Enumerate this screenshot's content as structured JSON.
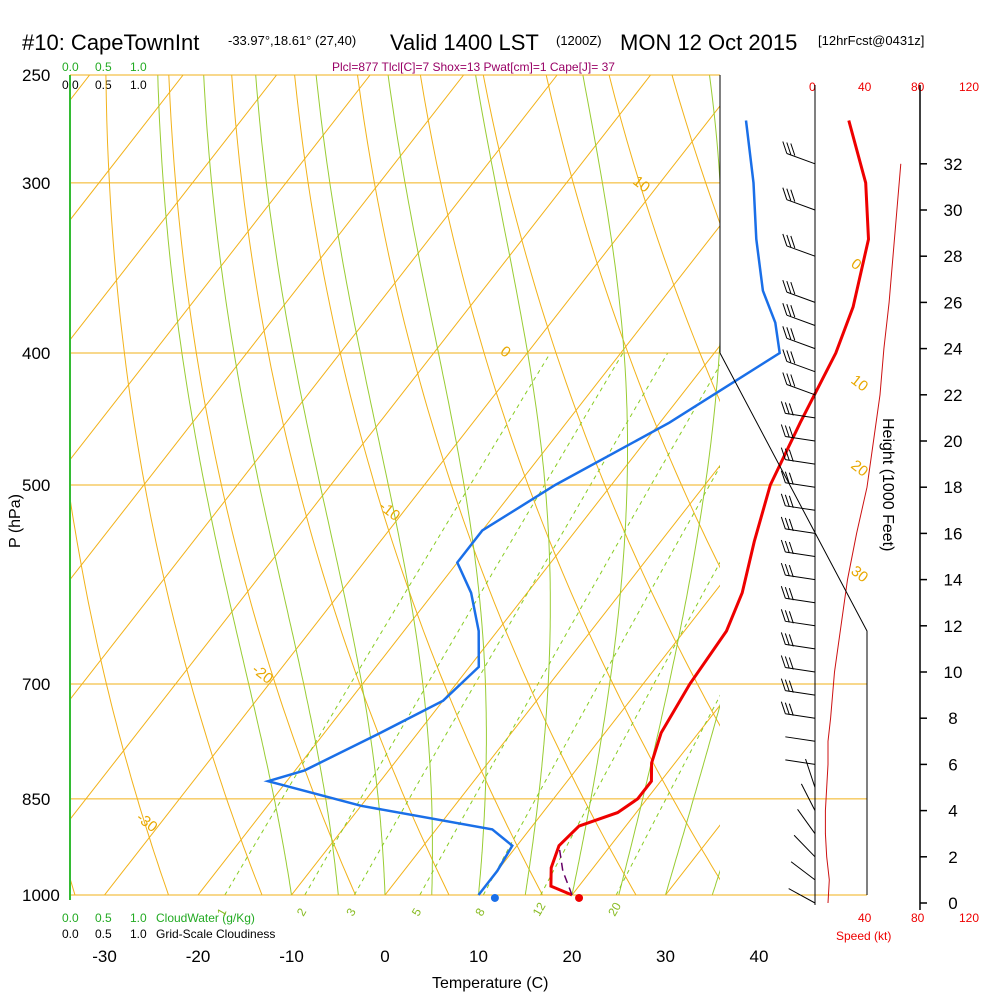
{
  "header": {
    "station": "#10: CapeTownInt",
    "coords": "-33.97°,18.61° (27,40)",
    "valid": "Valid 1400 LST",
    "utc": "(1200Z)",
    "date": "MON 12 Oct 2015",
    "forecast": "[12hrFcst@0431z]"
  },
  "stats_line": "Plcl=877 Tlcl[C]=7 Shox=13 Pwat[cm]=1 Cape[J]= 37",
  "cloud_scales": {
    "top_green": [
      "0.0",
      "0.5",
      "1.0"
    ],
    "top_black": [
      "0.0",
      "0.5",
      "1.0"
    ],
    "bottom_green": [
      "0.0",
      "0.5",
      "1.0"
    ],
    "bottom_green_label": "CloudWater (g/Kg)",
    "bottom_black": [
      "0.0",
      "0.5",
      "1.0"
    ],
    "bottom_black_label": "Grid-Scale Cloudiness"
  },
  "speed_scale": {
    "ticks": [
      "0",
      "40",
      "80",
      "120"
    ],
    "label": "Speed (kt)"
  },
  "colors": {
    "temperature": "#ee0000",
    "dewpoint": "#1a6fe8",
    "isotherm": "#f2b21a",
    "dry_adiabat": "#f2b21a",
    "moist_adiabat": "#99cc33",
    "mixing_ratio": "#88cc22",
    "isobar": "#f2b21a",
    "wind_speed": "#cc1111",
    "parcel": "#660066"
  },
  "chart_data": {
    "type": "line",
    "title": "",
    "xlabel": "Temperature (C)",
    "ylabel": "P (hPa)",
    "y2label": "Height (1000 Feet)",
    "x_ticks": [
      "-30",
      "-20",
      "-10",
      "0",
      "10",
      "20",
      "30",
      "40"
    ],
    "p_ticks": [
      "250",
      "300",
      "400",
      "500",
      "700",
      "850",
      "1000"
    ],
    "p_tick_values": [
      250,
      300,
      400,
      500,
      700,
      850,
      1000
    ],
    "height_ticks": [
      "0",
      "2",
      "4",
      "6",
      "8",
      "10",
      "12",
      "14",
      "16",
      "18",
      "20",
      "22",
      "24",
      "26",
      "28",
      "30",
      "32"
    ],
    "height_tick_values": [
      0,
      2,
      4,
      6,
      8,
      10,
      12,
      14,
      16,
      18,
      20,
      22,
      24,
      26,
      28,
      30,
      32
    ],
    "isotherm_labels": [
      {
        "text": "10",
        "t": -33,
        "p": 300
      },
      {
        "text": "0",
        "t": -33,
        "p": 400
      },
      {
        "text": "-10",
        "t": -33,
        "p": 520
      },
      {
        "text": "-20",
        "t": -33,
        "p": 685
      },
      {
        "text": "-30",
        "t": -33,
        "p": 880
      },
      {
        "text": "0",
        "t": 35,
        "p": 345
      },
      {
        "text": "10",
        "t": 38,
        "p": 420
      },
      {
        "text": "20",
        "t": 43,
        "p": 485
      },
      {
        "text": "30",
        "t": 48,
        "p": 580
      }
    ],
    "mixing_ratio_labels": [
      "1",
      "2",
      "3",
      "5",
      "8",
      "12",
      "20"
    ],
    "mixing_ratio_values": [
      1,
      2,
      3,
      5,
      8,
      12,
      20
    ],
    "temperature_profile": [
      {
        "p": 1000,
        "t": 20
      },
      {
        "p": 985,
        "t": 17
      },
      {
        "p": 955,
        "t": 15.5
      },
      {
        "p": 920,
        "t": 14.5
      },
      {
        "p": 890,
        "t": 15
      },
      {
        "p": 870,
        "t": 18
      },
      {
        "p": 850,
        "t": 19
      },
      {
        "p": 825,
        "t": 19
      },
      {
        "p": 800,
        "t": 17.5
      },
      {
        "p": 760,
        "t": 16
      },
      {
        "p": 700,
        "t": 15
      },
      {
        "p": 640,
        "t": 14.5
      },
      {
        "p": 600,
        "t": 13
      },
      {
        "p": 550,
        "t": 10
      },
      {
        "p": 500,
        "t": 7
      },
      {
        "p": 450,
        "t": 5
      },
      {
        "p": 400,
        "t": 3
      },
      {
        "p": 370,
        "t": 1
      },
      {
        "p": 330,
        "t": -3
      },
      {
        "p": 300,
        "t": -8
      },
      {
        "p": 270,
        "t": -15
      }
    ],
    "dewpoint_profile": [
      {
        "p": 1000,
        "t": 10
      },
      {
        "p": 960,
        "t": 10
      },
      {
        "p": 920,
        "t": 9.5
      },
      {
        "p": 895,
        "t": 6
      },
      {
        "p": 860,
        "t": -10
      },
      {
        "p": 825,
        "t": -22
      },
      {
        "p": 810,
        "t": -19
      },
      {
        "p": 760,
        "t": -14
      },
      {
        "p": 720,
        "t": -10
      },
      {
        "p": 680,
        "t": -9
      },
      {
        "p": 640,
        "t": -12
      },
      {
        "p": 600,
        "t": -16
      },
      {
        "p": 570,
        "t": -20
      },
      {
        "p": 540,
        "t": -20
      },
      {
        "p": 500,
        "t": -16
      },
      {
        "p": 450,
        "t": -9
      },
      {
        "p": 400,
        "t": -3
      },
      {
        "p": 380,
        "t": -6
      },
      {
        "p": 360,
        "t": -10
      },
      {
        "p": 330,
        "t": -15
      },
      {
        "p": 300,
        "t": -20
      },
      {
        "p": 270,
        "t": -26
      }
    ],
    "surface_temperature": {
      "p": 1005,
      "t": 21
    },
    "surface_dewpoint": {
      "p": 1005,
      "t": 12
    },
    "parcel_path": [
      {
        "p": 1000,
        "t": 20
      },
      {
        "p": 960,
        "t": 17
      },
      {
        "p": 920,
        "t": 14.5
      }
    ],
    "wind_speed_profile": [
      {
        "h": 0,
        "v": 10
      },
      {
        "h": 1,
        "v": 11
      },
      {
        "h": 2,
        "v": 9
      },
      {
        "h": 3,
        "v": 8
      },
      {
        "h": 4,
        "v": 8
      },
      {
        "h": 5,
        "v": 9
      },
      {
        "h": 6,
        "v": 10
      },
      {
        "h": 7,
        "v": 10
      },
      {
        "h": 8,
        "v": 12
      },
      {
        "h": 10,
        "v": 15
      },
      {
        "h": 12,
        "v": 20
      },
      {
        "h": 14,
        "v": 25
      },
      {
        "h": 16,
        "v": 32
      },
      {
        "h": 18,
        "v": 40
      },
      {
        "h": 20,
        "v": 45
      },
      {
        "h": 22,
        "v": 50
      },
      {
        "h": 24,
        "v": 53
      },
      {
        "h": 26,
        "v": 57
      },
      {
        "h": 28,
        "v": 60
      },
      {
        "h": 30,
        "v": 63
      },
      {
        "h": 32,
        "v": 66
      }
    ],
    "legend": "none",
    "grid": true
  }
}
